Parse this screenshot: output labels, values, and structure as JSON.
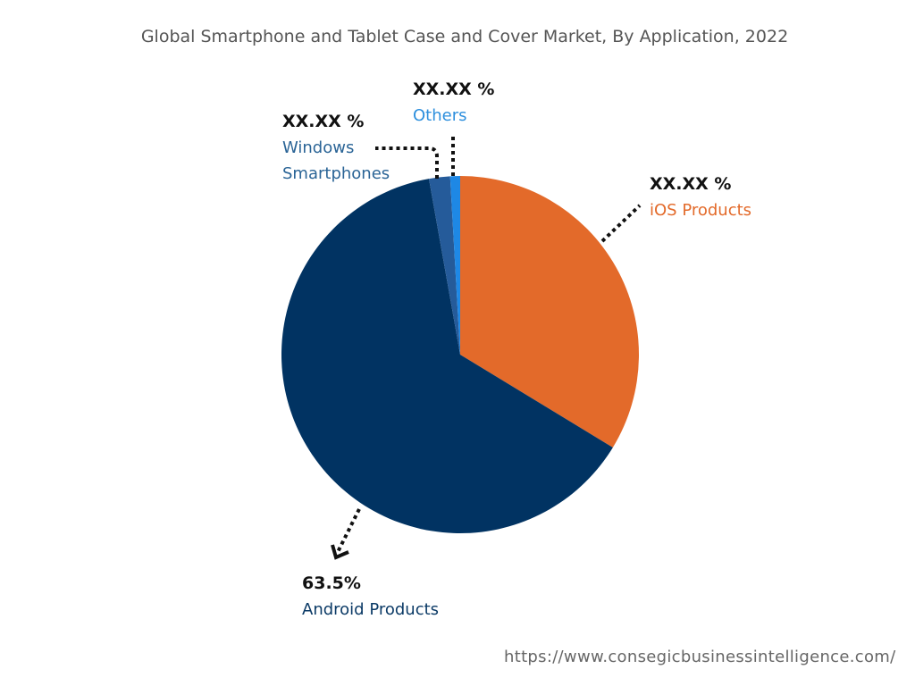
{
  "chart_data": {
    "type": "pie",
    "title": "Global Smartphone and Tablet Case and Cover Market, By Application, 2022",
    "slices": [
      {
        "name": "iOS Products",
        "value": 33.7,
        "label": "XX.XX %",
        "color": "#E36A2A",
        "label_color": "#E36A2A"
      },
      {
        "name": "Android Products",
        "value": 63.5,
        "label": "63.5%",
        "color": "#013362",
        "label_color": "#0B3A66"
      },
      {
        "name": "Windows Smartphones",
        "value": 1.9,
        "label": "XX.XX %",
        "color": "#255B9A",
        "label_color": "#2A6496"
      },
      {
        "name": "Others",
        "value": 0.9,
        "label": "XX.XX %",
        "color": "#1E88E5",
        "label_color": "#2D8FDD"
      }
    ],
    "start_angle": "12 o'clock",
    "direction": "clockwise"
  },
  "source_url": "https://www.consegicbusinessintelligence.com/"
}
